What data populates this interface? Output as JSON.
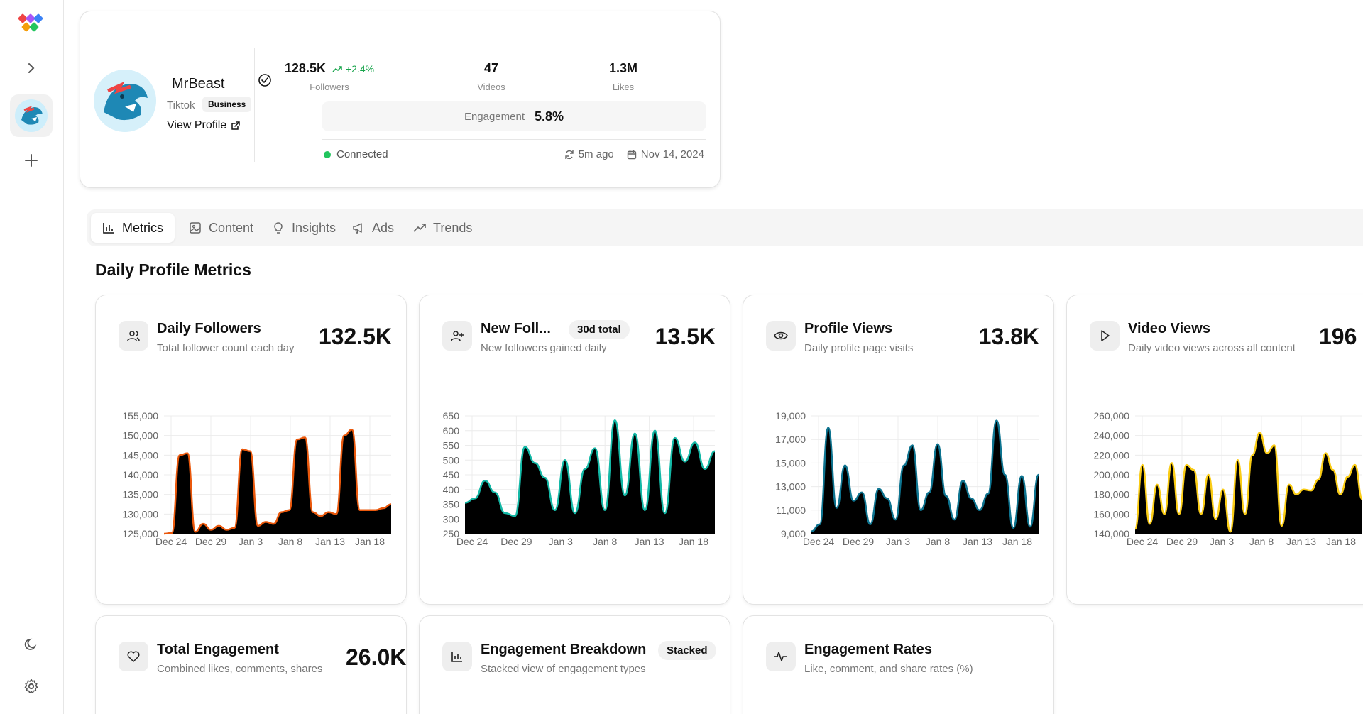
{
  "profile": {
    "name": "MrBeast",
    "platform": "Tiktok",
    "badge": "Business",
    "view_profile": "View Profile",
    "followers": "128.5K",
    "followers_growth": "+2.4%",
    "followers_label": "Followers",
    "videos": "47",
    "videos_label": "Videos",
    "likes": "1.3M",
    "likes_label": "Likes",
    "engagement_label": "Engagement",
    "engagement_value": "5.8%",
    "status": "Connected",
    "last_sync": "5m ago",
    "date": "Nov 14, 2024"
  },
  "tabs": [
    {
      "label": "Metrics",
      "icon": "bar-chart-icon"
    },
    {
      "label": "Content",
      "icon": "image-icon"
    },
    {
      "label": "Insights",
      "icon": "lightbulb-icon"
    },
    {
      "label": "Ads",
      "icon": "megaphone-icon"
    },
    {
      "label": "Trends",
      "icon": "trending-up-icon"
    }
  ],
  "section_title": "Daily Profile Metrics",
  "cards": {
    "daily_followers": {
      "title": "Daily Followers",
      "subtitle": "Total follower count each day",
      "value": "132.5K"
    },
    "new_followers": {
      "title": "New Foll...",
      "badge": "30d total",
      "subtitle": "New followers gained daily",
      "value": "13.5K"
    },
    "profile_views": {
      "title": "Profile Views",
      "subtitle": "Daily profile page visits",
      "value": "13.8K"
    },
    "video_views": {
      "title": "Video Views",
      "subtitle": "Daily video views across all content",
      "value": "196"
    },
    "total_engagement": {
      "title": "Total Engagement",
      "subtitle": "Combined likes, comments, shares",
      "value": "26.0K"
    },
    "engagement_breakdown": {
      "title": "Engagement Breakdown",
      "badge": "Stacked",
      "subtitle": "Stacked view of engagement types"
    },
    "engagement_rates": {
      "title": "Engagement Rates",
      "subtitle": "Like, comment, and share rates (%)"
    }
  },
  "colors": {
    "accent_green": "#16a34a",
    "followers_line": "#ea580c",
    "new_followers_line": "#14b8a6",
    "profile_views_line": "#0e7490",
    "video_views_line": "#facc15"
  },
  "chart_data": [
    {
      "type": "area",
      "title": "Daily Followers",
      "ylim": [
        125000,
        155000
      ],
      "yticks": [
        "155,000",
        "150,000",
        "145,000",
        "140,000",
        "135,000",
        "130,000",
        "125,000"
      ],
      "x_labels": [
        "Dec 24",
        "Dec 29",
        "Jan 3",
        "Jan 8",
        "Jan 13",
        "Jan 18"
      ],
      "values": [
        125000,
        125200,
        145000,
        145500,
        125500,
        127500,
        126000,
        127000,
        126000,
        126500,
        146500,
        146000,
        127000,
        128000,
        127500,
        130500,
        131000,
        149000,
        149500,
        130500,
        129500,
        130500,
        130000,
        150000,
        151500,
        131000,
        131000,
        131000,
        131500,
        132500
      ]
    },
    {
      "type": "area",
      "title": "New Followers",
      "ylim": [
        250,
        650
      ],
      "yticks": [
        "650",
        "600",
        "550",
        "500",
        "450",
        "400",
        "350",
        "300",
        "250"
      ],
      "x_labels": [
        "Dec 24",
        "Dec 29",
        "Jan 3",
        "Jan 8",
        "Jan 13",
        "Jan 18"
      ],
      "values": [
        355,
        370,
        430,
        390,
        320,
        310,
        545,
        490,
        440,
        330,
        500,
        320,
        470,
        540,
        330,
        635,
        380,
        590,
        330,
        600,
        320,
        575,
        495,
        560,
        470,
        530
      ]
    },
    {
      "type": "area",
      "title": "Profile Views",
      "ylim": [
        9000,
        19000
      ],
      "yticks": [
        "19,000",
        "17,000",
        "15,000",
        "13,000",
        "11,000",
        "9,000"
      ],
      "x_labels": [
        "Dec 24",
        "Dec 29",
        "Jan 3",
        "Jan 8",
        "Jan 13",
        "Jan 18"
      ],
      "values": [
        9200,
        9800,
        18000,
        11200,
        14800,
        11800,
        12500,
        9800,
        12800,
        12000,
        10200,
        14800,
        16500,
        11000,
        12500,
        16600,
        12200,
        10200,
        13500,
        12000,
        11000,
        12400,
        18600,
        14000,
        9500,
        13900,
        9600,
        14000
      ]
    },
    {
      "type": "area",
      "title": "Video Views",
      "ylim": [
        140000,
        260000
      ],
      "yticks": [
        "260,000",
        "240,000",
        "220,000",
        "200,000",
        "180,000",
        "160,000",
        "140,000"
      ],
      "x_labels": [
        "Dec 24",
        "Dec 29",
        "Jan 3",
        "Jan 8",
        "Jan 13",
        "Jan 18"
      ],
      "values": [
        145000,
        210000,
        150000,
        190000,
        160000,
        212000,
        160000,
        210000,
        205000,
        160000,
        200000,
        155000,
        185000,
        142000,
        215000,
        160000,
        220000,
        243000,
        222000,
        230000,
        148000,
        190000,
        180000,
        185000,
        184000,
        195000,
        222000,
        205000,
        180000,
        198000,
        210000,
        175000
      ]
    }
  ]
}
